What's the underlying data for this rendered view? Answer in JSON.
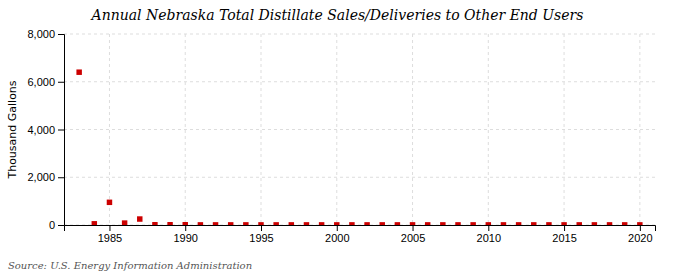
{
  "chart_data": {
    "type": "scatter",
    "title": "Annual Nebraska Total Distillate Sales/Deliveries to Other End Users",
    "ylabel": "Thousand Gallons",
    "annotations": [
      "Source: U.S. Energy Information Administration"
    ],
    "x": [
      1983,
      1984,
      1985,
      1986,
      1987,
      1988,
      1989,
      1990,
      1991,
      1992,
      1993,
      1994,
      1995,
      1996,
      1997,
      1998,
      1999,
      2000,
      2001,
      2002,
      2003,
      2004,
      2005,
      2006,
      2007,
      2008,
      2009,
      2010,
      2011,
      2012,
      2013,
      2014,
      2015,
      2016,
      2017,
      2018,
      2019,
      2020
    ],
    "values": [
      6400,
      50,
      950,
      80,
      250,
      10,
      10,
      10,
      5,
      5,
      5,
      5,
      5,
      5,
      5,
      5,
      5,
      5,
      5,
      5,
      5,
      5,
      5,
      5,
      5,
      5,
      5,
      5,
      5,
      5,
      5,
      5,
      5,
      5,
      5,
      5,
      5,
      5
    ],
    "color": "#cc0000",
    "marker": "square",
    "xlim": [
      1982,
      2021
    ],
    "ylim": [
      0,
      8000
    ],
    "xticks": [
      1985,
      1990,
      1995,
      2000,
      2005,
      2010,
      2015,
      2020
    ],
    "yticks": [
      0,
      {
        "value": 2000,
        "label": "2,000"
      },
      {
        "value": 4000,
        "label": "4,000"
      },
      {
        "value": 6000,
        "label": "6,000"
      },
      {
        "value": 8000,
        "label": "8,000"
      }
    ],
    "grid": true
  }
}
